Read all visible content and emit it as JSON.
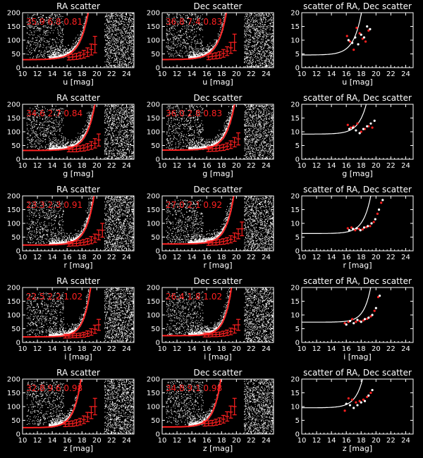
{
  "figure": {
    "background": "#000000",
    "foreground": "#ffffff",
    "accent": "#ff2020"
  },
  "chart_data": [
    {
      "type": "scatter",
      "row": 0,
      "col": 0,
      "title": "RA scatter",
      "xlabel": "u [mag]",
      "xlim": [
        10,
        25
      ],
      "ylim": [
        0,
        200
      ],
      "xticks": [
        10,
        12,
        14,
        16,
        18,
        20,
        22,
        24
      ],
      "yticks": [
        0,
        50,
        100,
        150,
        200
      ],
      "annotation": "35.9   6.8  0.81",
      "fit": {
        "base": 35.9,
        "a": 6.8,
        "b": 0.81,
        "ref": 15
      },
      "binned": {
        "x": [
          16.25,
          16.75,
          17.25,
          17.75,
          18.25,
          18.75,
          19.25,
          19.75
        ],
        "y": [
          38,
          39,
          41,
          44,
          49,
          56,
          66,
          84
        ],
        "yerr": [
          10,
          10,
          11,
          12,
          14,
          16,
          20,
          30
        ]
      }
    },
    {
      "type": "scatter",
      "row": 0,
      "col": 1,
      "title": "Dec scatter",
      "xlabel": "u [mag]",
      "xlim": [
        10,
        25
      ],
      "ylim": [
        0,
        200
      ],
      "xticks": [
        10,
        12,
        14,
        16,
        18,
        20,
        22,
        24
      ],
      "yticks": [
        0,
        50,
        100,
        150,
        200
      ],
      "annotation": "36.8   7.4  0.83",
      "fit": {
        "base": 36.8,
        "a": 7.4,
        "b": 0.83,
        "ref": 15
      },
      "binned": {
        "x": [
          16.25,
          16.75,
          17.25,
          17.75,
          18.25,
          18.75,
          19.25,
          19.75
        ],
        "y": [
          39,
          41,
          43,
          46,
          52,
          60,
          72,
          92
        ],
        "yerr": [
          10,
          10,
          11,
          12,
          14,
          16,
          20,
          30
        ]
      }
    },
    {
      "type": "scatter",
      "row": 0,
      "col": 2,
      "title": "scatter of RA, Dec scatter",
      "xlabel": "u [mag]",
      "xlim": [
        10,
        25
      ],
      "ylim": [
        0,
        20
      ],
      "xticks": [
        10,
        12,
        14,
        16,
        18,
        20,
        22,
        24
      ],
      "yticks": [
        0,
        5,
        10,
        15,
        20
      ],
      "fit": {
        "base": 5.5,
        "a": 0.9,
        "b": 0.9,
        "ref": 15
      },
      "points": {
        "red": {
          "x": [
            16.1,
            16.5,
            17.0,
            17.4,
            17.8,
            18.2,
            18.6,
            19.0
          ],
          "y": [
            11.5,
            9.5,
            6.5,
            14.5,
            12.5,
            10.5,
            9.5,
            13.5
          ]
        },
        "white": {
          "x": [
            16.3,
            16.8,
            17.2,
            17.6,
            18.0,
            18.4,
            18.8,
            19.2
          ],
          "y": [
            10,
            9,
            11,
            8.5,
            12,
            11,
            15,
            14
          ]
        }
      }
    },
    {
      "type": "scatter",
      "row": 1,
      "col": 0,
      "title": "RA scatter",
      "xlabel": "g [mag]",
      "xlim": [
        10,
        25
      ],
      "ylim": [
        0,
        200
      ],
      "xticks": [
        10,
        12,
        14,
        16,
        18,
        20,
        22,
        24
      ],
      "yticks": [
        0,
        50,
        100,
        150,
        200
      ],
      "annotation": "34.6   2.7  0.84",
      "fit": {
        "base": 34.6,
        "a": 2.7,
        "b": 0.84,
        "ref": 15
      },
      "binned": {
        "x": [
          16.25,
          16.75,
          17.25,
          17.75,
          18.25,
          18.75,
          19.25,
          19.75,
          20.25
        ],
        "y": [
          36,
          36,
          37,
          39,
          41,
          45,
          50,
          58,
          70
        ],
        "yerr": [
          9,
          9,
          10,
          10,
          11,
          12,
          14,
          17,
          22
        ]
      }
    },
    {
      "type": "scatter",
      "row": 1,
      "col": 1,
      "title": "Dec scatter",
      "xlabel": "g [mag]",
      "xlim": [
        10,
        25
      ],
      "ylim": [
        0,
        200
      ],
      "xticks": [
        10,
        12,
        14,
        16,
        18,
        20,
        22,
        24
      ],
      "yticks": [
        0,
        50,
        100,
        150,
        200
      ],
      "annotation": "36.0   2.8  0.83",
      "fit": {
        "base": 36.0,
        "a": 2.8,
        "b": 0.83,
        "ref": 15
      },
      "binned": {
        "x": [
          16.25,
          16.75,
          17.25,
          17.75,
          18.25,
          18.75,
          19.25,
          19.75,
          20.25
        ],
        "y": [
          37,
          38,
          39,
          41,
          43,
          47,
          53,
          62,
          74
        ],
        "yerr": [
          9,
          9,
          10,
          10,
          11,
          12,
          14,
          17,
          22
        ]
      }
    },
    {
      "type": "scatter",
      "row": 1,
      "col": 2,
      "title": "scatter of RA, Dec scatter",
      "xlabel": "g [mag]",
      "xlim": [
        10,
        25
      ],
      "ylim": [
        0,
        20
      ],
      "xticks": [
        10,
        12,
        14,
        16,
        18,
        20,
        22,
        24
      ],
      "yticks": [
        0,
        5,
        10,
        15,
        20
      ],
      "fit": {
        "base": 9.5,
        "a": 0.35,
        "b": 0.9,
        "ref": 15
      },
      "points": {
        "red": {
          "x": [
            16.2,
            16.6,
            17.0,
            17.5,
            18.0,
            18.5,
            19.0,
            19.5
          ],
          "y": [
            12.5,
            11.5,
            12,
            13,
            10,
            11,
            12,
            11.5
          ]
        },
        "white": {
          "x": [
            16.4,
            16.9,
            17.3,
            17.8,
            18.3,
            18.8,
            19.3,
            19.8
          ],
          "y": [
            11,
            11.5,
            10.5,
            9.5,
            11,
            12,
            13,
            14
          ]
        }
      }
    },
    {
      "type": "scatter",
      "row": 2,
      "col": 0,
      "title": "RA scatter",
      "xlabel": "r [mag]",
      "xlim": [
        10,
        25
      ],
      "ylim": [
        0,
        200
      ],
      "xticks": [
        10,
        12,
        14,
        16,
        18,
        20,
        22,
        24
      ],
      "yticks": [
        0,
        50,
        100,
        150,
        200
      ],
      "annotation": "23.3   2.3  0.91",
      "fit": {
        "base": 23.3,
        "a": 2.3,
        "b": 0.91,
        "ref": 15
      },
      "binned": {
        "x": [
          16.25,
          16.75,
          17.25,
          17.75,
          18.25,
          18.75,
          19.25,
          19.75,
          20.25,
          20.75
        ],
        "y": [
          25,
          26,
          27,
          29,
          31,
          34,
          39,
          46,
          58,
          75
        ],
        "yerr": [
          8,
          8,
          9,
          9,
          10,
          11,
          13,
          15,
          18,
          25
        ]
      }
    },
    {
      "type": "scatter",
      "row": 2,
      "col": 1,
      "title": "Dec scatter",
      "xlabel": "r [mag]",
      "xlim": [
        10,
        25
      ],
      "ylim": [
        0,
        200
      ],
      "xticks": [
        10,
        12,
        14,
        16,
        18,
        20,
        22,
        24
      ],
      "yticks": [
        0,
        50,
        100,
        150,
        200
      ],
      "annotation": "27.0   2.1  0.92",
      "fit": {
        "base": 27.0,
        "a": 2.1,
        "b": 0.92,
        "ref": 15
      },
      "binned": {
        "x": [
          16.25,
          16.75,
          17.25,
          17.75,
          18.25,
          18.75,
          19.25,
          19.75,
          20.25,
          20.75
        ],
        "y": [
          28,
          29,
          30,
          32,
          34,
          37,
          42,
          50,
          62,
          80
        ],
        "yerr": [
          8,
          8,
          9,
          9,
          10,
          11,
          13,
          15,
          18,
          25
        ]
      }
    },
    {
      "type": "scatter",
      "row": 2,
      "col": 2,
      "title": "scatter of RA, Dec scatter",
      "xlabel": "r [mag]",
      "xlim": [
        10,
        25
      ],
      "ylim": [
        0,
        20
      ],
      "xticks": [
        10,
        12,
        14,
        16,
        18,
        20,
        22,
        24
      ],
      "yticks": [
        0,
        5,
        10,
        15,
        20
      ],
      "fit": {
        "base": 6.5,
        "a": 0.2,
        "b": 0.95,
        "ref": 15
      },
      "points": {
        "red": {
          "x": [
            16.2,
            16.7,
            17.2,
            17.7,
            18.2,
            18.7,
            19.2,
            19.7,
            20.2,
            20.7
          ],
          "y": [
            8.2,
            8.5,
            7.5,
            8,
            7.8,
            8.6,
            9,
            10.5,
            13.5,
            17.5
          ]
        },
        "white": {
          "x": [
            16.4,
            16.9,
            17.4,
            17.9,
            18.4,
            18.9,
            19.4,
            19.9,
            20.4,
            20.9
          ],
          "y": [
            7.5,
            8,
            8.2,
            7.5,
            8.5,
            9,
            10,
            11.5,
            15,
            18.5
          ]
        }
      }
    },
    {
      "type": "scatter",
      "row": 3,
      "col": 0,
      "title": "RA scatter",
      "xlabel": "i [mag]",
      "xlim": [
        10,
        25
      ],
      "ylim": [
        0,
        200
      ],
      "xticks": [
        10,
        12,
        14,
        16,
        18,
        20,
        22,
        24
      ],
      "yticks": [
        0,
        50,
        100,
        150,
        200
      ],
      "annotation": "22.5   2.2  1.02",
      "fit": {
        "base": 22.5,
        "a": 2.2,
        "b": 1.02,
        "ref": 15
      },
      "binned": {
        "x": [
          15.75,
          16.25,
          16.75,
          17.25,
          17.75,
          18.25,
          18.75,
          19.25,
          19.75,
          20.25
        ],
        "y": [
          23,
          23,
          24,
          25,
          26,
          28,
          32,
          38,
          48,
          64
        ],
        "yerr": [
          7,
          7,
          7,
          8,
          8,
          9,
          10,
          12,
          15,
          20
        ]
      }
    },
    {
      "type": "scatter",
      "row": 3,
      "col": 1,
      "title": "Dec scatter",
      "xlabel": "i [mag]",
      "xlim": [
        10,
        25
      ],
      "ylim": [
        0,
        200
      ],
      "xticks": [
        10,
        12,
        14,
        16,
        18,
        20,
        22,
        24
      ],
      "yticks": [
        0,
        50,
        100,
        150,
        200
      ],
      "annotation": "26.4   1.8  1.02",
      "fit": {
        "base": 26.4,
        "a": 1.8,
        "b": 1.02,
        "ref": 15
      },
      "binned": {
        "x": [
          15.75,
          16.25,
          16.75,
          17.25,
          17.75,
          18.25,
          18.75,
          19.25,
          19.75,
          20.25
        ],
        "y": [
          27,
          27,
          28,
          29,
          30,
          32,
          35,
          40,
          49,
          64
        ],
        "yerr": [
          7,
          7,
          7,
          8,
          8,
          9,
          10,
          12,
          15,
          20
        ]
      }
    },
    {
      "type": "scatter",
      "row": 3,
      "col": 2,
      "title": "scatter of RA, Dec scatter",
      "xlabel": "i [mag]",
      "xlim": [
        10,
        25
      ],
      "ylim": [
        0,
        20
      ],
      "xticks": [
        10,
        12,
        14,
        16,
        18,
        20,
        22,
        24
      ],
      "yticks": [
        0,
        5,
        10,
        15,
        20
      ],
      "fit": {
        "base": 7.5,
        "a": 0.12,
        "b": 1.05,
        "ref": 15
      },
      "points": {
        "red": {
          "x": [
            15.8,
            16.3,
            16.8,
            17.3,
            17.8,
            18.3,
            18.8,
            19.3,
            19.8,
            20.3
          ],
          "y": [
            7,
            7.5,
            8.5,
            7.5,
            7.8,
            8,
            8.6,
            9.5,
            11.5,
            16.5
          ]
        },
        "white": {
          "x": [
            16.0,
            16.5,
            17.0,
            17.5,
            18.0,
            18.5,
            19.0,
            19.5,
            20.0,
            20.5
          ],
          "y": [
            6.5,
            7.8,
            7,
            8.2,
            7.5,
            8.5,
            9,
            10,
            12.5,
            17
          ]
        }
      }
    },
    {
      "type": "scatter",
      "row": 4,
      "col": 0,
      "title": "RA scatter",
      "xlabel": "z [mag]",
      "xlim": [
        10,
        25
      ],
      "ylim": [
        0,
        200
      ],
      "xticks": [
        10,
        12,
        14,
        16,
        18,
        20,
        22,
        24
      ],
      "yticks": [
        0,
        50,
        100,
        150,
        200
      ],
      "annotation": "32.8   9.6  0.98",
      "fit": {
        "base": 32.8,
        "a": 9.6,
        "b": 0.98,
        "ref": 15
      },
      "binned": {
        "x": [
          15.75,
          16.25,
          16.75,
          17.25,
          17.75,
          18.25,
          18.75,
          19.25,
          19.75
        ],
        "y": [
          36,
          37,
          38,
          41,
          45,
          52,
          62,
          78,
          100
        ],
        "yerr": [
          9,
          9,
          10,
          11,
          12,
          14,
          17,
          22,
          30
        ]
      }
    },
    {
      "type": "scatter",
      "row": 4,
      "col": 1,
      "title": "Dec scatter",
      "xlabel": "z [mag]",
      "xlim": [
        10,
        25
      ],
      "ylim": [
        0,
        200
      ],
      "xticks": [
        10,
        12,
        14,
        16,
        18,
        20,
        22,
        24
      ],
      "yticks": [
        0,
        50,
        100,
        150,
        200
      ],
      "annotation": "34.8   9.1  0.98",
      "fit": {
        "base": 34.8,
        "a": 9.1,
        "b": 0.98,
        "ref": 15
      },
      "binned": {
        "x": [
          15.75,
          16.25,
          16.75,
          17.25,
          17.75,
          18.25,
          18.75,
          19.25,
          19.75
        ],
        "y": [
          38,
          39,
          40,
          43,
          47,
          54,
          64,
          80,
          100
        ],
        "yerr": [
          9,
          9,
          10,
          11,
          12,
          14,
          17,
          22,
          30
        ]
      }
    },
    {
      "type": "scatter",
      "row": 4,
      "col": 2,
      "title": "scatter of RA, Dec scatter",
      "xlabel": "z [mag]",
      "xlim": [
        10,
        25
      ],
      "ylim": [
        0,
        20
      ],
      "xticks": [
        10,
        12,
        14,
        16,
        18,
        20,
        22,
        24
      ],
      "yticks": [
        0,
        5,
        10,
        15,
        20
      ],
      "fit": {
        "base": 10.0,
        "a": 0.45,
        "b": 0.95,
        "ref": 15
      },
      "points": {
        "red": {
          "x": [
            15.8,
            16.3,
            16.8,
            17.3,
            17.8,
            18.3,
            18.8,
            19.3
          ],
          "y": [
            8.5,
            13,
            12.5,
            11.5,
            12,
            12.5,
            13.5,
            15
          ]
        },
        "white": {
          "x": [
            16.0,
            16.5,
            17.0,
            17.5,
            18.0,
            18.5,
            19.0,
            19.5
          ],
          "y": [
            11,
            10.5,
            9.5,
            10.5,
            11.5,
            12,
            14,
            16
          ]
        }
      }
    }
  ]
}
